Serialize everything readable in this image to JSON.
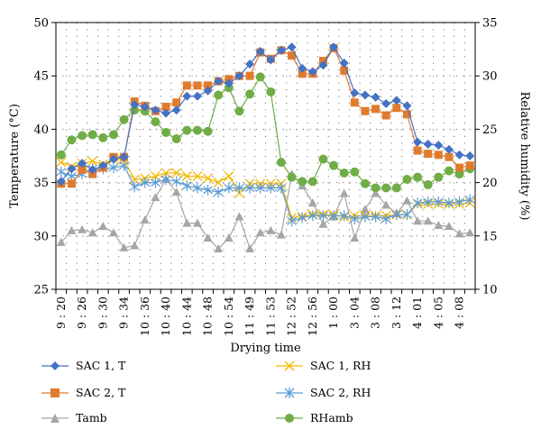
{
  "chart_data": {
    "type": "line",
    "xlabel": "Drying time",
    "ylabel_left": "Temperature (°C)",
    "ylabel_right": "Relative humidity (%)",
    "ylim_left": [
      25,
      50
    ],
    "ylim_right": [
      10,
      35
    ],
    "yticks_left": [
      "25",
      "30",
      "35",
      "40",
      "45",
      "50"
    ],
    "yticks_right": [
      "10",
      "15",
      "20",
      "25",
      "30",
      "35"
    ],
    "grid": "dotted",
    "legend_placement": "bottom",
    "x_tick_labels": [
      "9 : 20",
      "9 : 26",
      "9 : 30",
      "9 : 34",
      "10 : 36",
      "10 : 40",
      "10 : 44",
      "10 : 48",
      "10 : 54",
      "11 : 49",
      "11 : 53",
      "12 : 52",
      "12 : 56",
      "1 : 00",
      "3 : 04",
      "3 : 08",
      "3 : 12",
      "4 : 01",
      "4 : 05",
      "4 : 08"
    ],
    "x_tick_positions": [
      0,
      2,
      4,
      6,
      8,
      10,
      12,
      14,
      16,
      18,
      20,
      22,
      24,
      26,
      28,
      30,
      32,
      34,
      36,
      38
    ],
    "series": [
      {
        "name": "SAC 1, T",
        "axis": "left",
        "color": "#4472C4",
        "marker": "diamond",
        "values": [
          35.1,
          36.3,
          36.8,
          36.2,
          36.6,
          37.2,
          37.4,
          42.3,
          42.1,
          41.8,
          41.5,
          41.8,
          43.1,
          43.1,
          43.6,
          44.5,
          44.3,
          45.0,
          46.1,
          47.3,
          46.5,
          47.4,
          47.7,
          45.7,
          45.4,
          46.0,
          47.7,
          46.2,
          43.4,
          43.2,
          43.0,
          42.4,
          42.7,
          42.2,
          38.8,
          38.6,
          38.5,
          38.1,
          37.6,
          37.5
        ]
      },
      {
        "name": "SAC 2, T",
        "axis": "left",
        "color": "#E07B2E",
        "marker": "square",
        "values": [
          34.9,
          34.9,
          36.2,
          35.8,
          36.4,
          37.4,
          37.4,
          42.6,
          42.2,
          41.7,
          42.1,
          42.5,
          44.1,
          44.1,
          44.1,
          44.5,
          44.7,
          45.0,
          45.0,
          47.2,
          46.6,
          47.4,
          46.9,
          45.2,
          45.2,
          46.4,
          47.6,
          45.5,
          42.5,
          41.7,
          41.9,
          41.3,
          42.0,
          41.4,
          38.0,
          37.7,
          37.6,
          37.4,
          36.4,
          36.6
        ]
      },
      {
        "name": "Tamb",
        "axis": "left",
        "color": "#A6A6A6",
        "marker": "triangle",
        "values": [
          29.4,
          30.5,
          30.6,
          30.3,
          30.9,
          30.3,
          28.9,
          29.1,
          31.5,
          33.6,
          35.3,
          34.1,
          31.2,
          31.2,
          29.8,
          28.8,
          29.8,
          31.8,
          28.8,
          30.3,
          30.5,
          30.1,
          35.8,
          34.7,
          33.1,
          31.1,
          31.8,
          34.0,
          29.8,
          32.5,
          34.0,
          32.9,
          32.1,
          33.3,
          31.4,
          31.4,
          31.0,
          30.9,
          30.2,
          30.3
        ]
      },
      {
        "name": "SAC 1, RH",
        "axis": "right",
        "color": "#F5B800",
        "marker": "x",
        "values": [
          21.9,
          21.5,
          21.8,
          22.0,
          21.7,
          22.2,
          22.1,
          20.3,
          20.4,
          20.6,
          20.9,
          20.9,
          20.6,
          20.6,
          20.4,
          20.0,
          20.6,
          19.0,
          19.9,
          19.9,
          19.9,
          19.9,
          16.7,
          16.8,
          17.0,
          17.0,
          17.0,
          16.8,
          16.9,
          16.9,
          16.9,
          16.9,
          17.0,
          17.0,
          18.0,
          18.0,
          18.0,
          18.0,
          18.0,
          18.1
        ]
      },
      {
        "name": "SAC 2, RH",
        "axis": "right",
        "color": "#5B9BD5",
        "marker": "star",
        "values": [
          21.0,
          20.6,
          20.8,
          21.3,
          21.3,
          21.4,
          21.6,
          19.6,
          20.0,
          20.0,
          20.3,
          20.1,
          19.7,
          19.5,
          19.3,
          19.1,
          19.5,
          19.5,
          19.5,
          19.5,
          19.5,
          19.5,
          16.4,
          16.7,
          16.9,
          16.9,
          16.9,
          16.9,
          16.6,
          16.8,
          16.8,
          16.6,
          17.0,
          17.0,
          18.1,
          18.2,
          18.2,
          18.1,
          18.2,
          18.4
        ]
      },
      {
        "name": "RHamb",
        "axis": "right",
        "color": "#70AD47",
        "marker": "circle",
        "values": [
          22.6,
          24.0,
          24.4,
          24.5,
          24.2,
          24.5,
          25.9,
          26.8,
          26.7,
          25.7,
          24.7,
          24.1,
          24.9,
          24.9,
          24.8,
          28.2,
          28.9,
          26.7,
          28.3,
          29.9,
          28.5,
          21.9,
          20.5,
          20.1,
          20.1,
          22.2,
          21.6,
          20.9,
          21.0,
          19.9,
          19.5,
          19.5,
          19.5,
          20.3,
          20.5,
          19.8,
          20.5,
          21.1,
          20.8,
          21.3
        ]
      }
    ]
  }
}
